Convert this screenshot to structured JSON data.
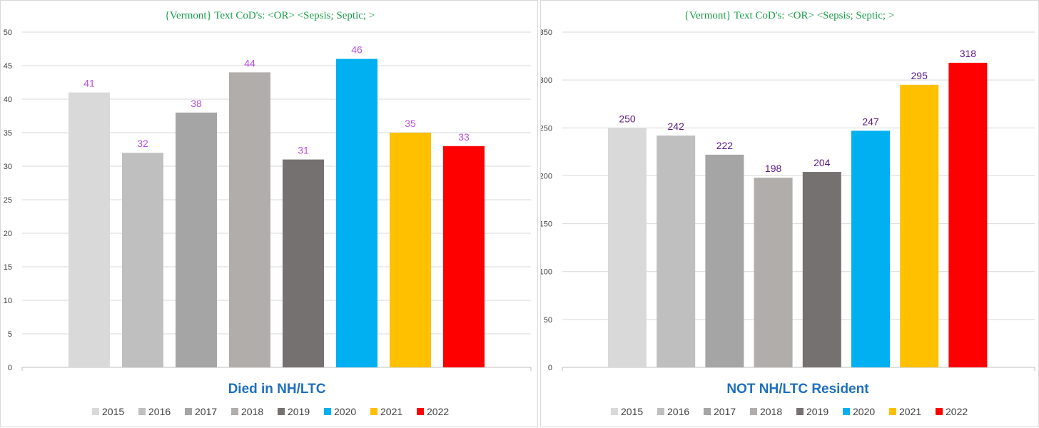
{
  "legend_colors": {
    "2015": "#d9d9d9",
    "2016": "#bfbfbf",
    "2017": "#a5a5a5",
    "2018": "#b0adab",
    "2019": "#767171",
    "2020": "#00b0f0",
    "2021": "#ffc000",
    "2022": "#ff0000"
  },
  "chart_data": [
    {
      "type": "bar",
      "title": "{Vermont}   Text CoD's: <OR> <Sepsis;  Septic; >",
      "subtitle": "Died  in NH/LTC",
      "categories": [
        "2015",
        "2016",
        "2017",
        "2018",
        "2019",
        "2020",
        "2021",
        "2022"
      ],
      "values": [
        41,
        32,
        38,
        44,
        31,
        46,
        35,
        33
      ],
      "ylim": [
        0,
        50
      ],
      "yticks": [
        "0",
        "5",
        "10",
        "15",
        "20",
        "25",
        "30",
        "35",
        "40",
        "45",
        "50"
      ],
      "label_color": "#b74fe0",
      "legend": [
        "2015",
        "2016",
        "2017",
        "2018",
        "2019",
        "2020",
        "2021",
        "2022"
      ],
      "legend_position": "bottom",
      "grid": true
    },
    {
      "type": "bar",
      "title": "{Vermont}   Text CoD's: <OR> <Sepsis;  Septic; >",
      "subtitle": "NOT NH/LTC Resident",
      "categories": [
        "2015",
        "2016",
        "2017",
        "2018",
        "2019",
        "2020",
        "2021",
        "2022"
      ],
      "values": [
        250,
        242,
        222,
        198,
        204,
        247,
        295,
        318
      ],
      "ylim": [
        0,
        350
      ],
      "yticks": [
        "0",
        "50",
        "100",
        "150",
        "200",
        "250",
        "300",
        "350"
      ],
      "label_color": "#5a1a8a",
      "legend": [
        "2015",
        "2016",
        "2017",
        "2018",
        "2019",
        "2020",
        "2021",
        "2022"
      ],
      "legend_position": "bottom",
      "grid": true
    }
  ]
}
